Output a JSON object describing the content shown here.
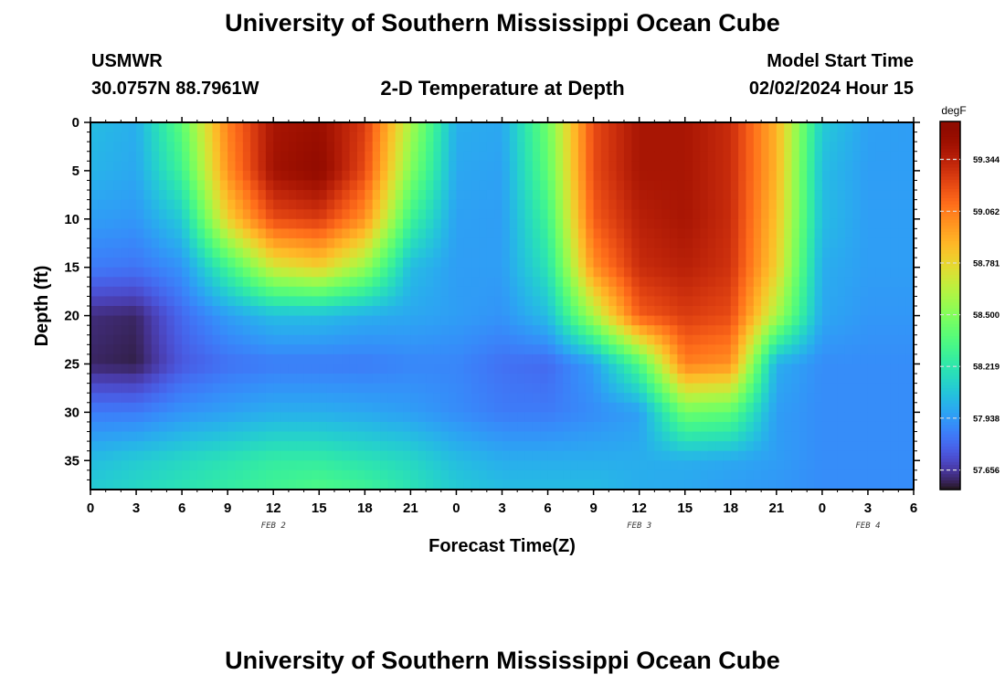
{
  "chart_data": {
    "type": "heatmap",
    "title": "University of Southern Mississippi Ocean Cube",
    "subtitle": "2-D Temperature at Depth",
    "station": "USMWR",
    "location": "30.0757N  88.7961W",
    "model_start_label": "Model Start Time",
    "model_start_value": "02/02/2024 Hour 15",
    "xlabel": "Forecast Time(Z)",
    "ylabel": "Depth (ft)",
    "x_unit": "forecast hours",
    "x_range": [
      0,
      54
    ],
    "x_tick_labels": [
      "0",
      "3",
      "6",
      "9",
      "12",
      "15",
      "18",
      "21",
      "0",
      "3",
      "6",
      "9",
      "12",
      "15",
      "18",
      "21",
      "0",
      "3",
      "6"
    ],
    "day_labels": [
      {
        "text": "FEB 2",
        "x": 12
      },
      {
        "text": "FEB 3",
        "x": 36
      },
      {
        "text": "FEB 4",
        "x": 51
      }
    ],
    "y_unit": "ft",
    "y_range": [
      0,
      38
    ],
    "y_inverted": true,
    "y_ticks": [
      0,
      5,
      10,
      15,
      20,
      25,
      30,
      35
    ],
    "colorbar": {
      "unit": "degF",
      "range": [
        57.55,
        59.55
      ],
      "ticks": [
        "59.344",
        "59.062",
        "58.781",
        "58.500",
        "58.219",
        "57.938",
        "57.656"
      ],
      "colormap": "turbo"
    },
    "values_note_depths_ft": [
      0,
      5,
      10,
      15,
      20,
      25,
      30,
      35,
      38
    ],
    "value_profiles": [
      {
        "x": 0,
        "values": [
          58.05,
          58.02,
          57.95,
          57.85,
          57.62,
          57.6,
          57.85,
          58.05,
          58.1
        ]
      },
      {
        "x": 3,
        "values": [
          58.0,
          57.98,
          57.93,
          57.83,
          57.6,
          57.58,
          57.85,
          58.1,
          58.15
        ]
      },
      {
        "x": 6,
        "values": [
          58.4,
          58.3,
          58.1,
          57.92,
          57.8,
          57.75,
          57.92,
          58.15,
          58.2
        ]
      },
      {
        "x": 9,
        "values": [
          59.05,
          59.0,
          58.8,
          58.3,
          57.95,
          57.82,
          57.96,
          58.2,
          58.25
        ]
      },
      {
        "x": 12,
        "values": [
          59.4,
          59.42,
          59.2,
          58.7,
          58.05,
          57.85,
          58.0,
          58.25,
          58.3
        ]
      },
      {
        "x": 15,
        "values": [
          59.45,
          59.5,
          59.25,
          58.8,
          58.05,
          57.85,
          58.0,
          58.25,
          58.35
        ]
      },
      {
        "x": 18,
        "values": [
          59.25,
          59.2,
          59.0,
          58.55,
          58.0,
          57.85,
          57.98,
          58.2,
          58.3
        ]
      },
      {
        "x": 21,
        "values": [
          58.6,
          58.5,
          58.3,
          58.05,
          57.98,
          57.88,
          57.95,
          58.15,
          58.2
        ]
      },
      {
        "x": 24,
        "values": [
          58.0,
          57.98,
          57.96,
          57.95,
          57.95,
          57.88,
          57.9,
          58.05,
          58.1
        ]
      },
      {
        "x": 27,
        "values": [
          57.98,
          57.96,
          57.95,
          57.95,
          57.92,
          57.82,
          57.85,
          58.0,
          58.05
        ]
      },
      {
        "x": 30,
        "values": [
          58.45,
          58.4,
          58.3,
          58.2,
          58.05,
          57.8,
          57.85,
          58.0,
          58.05
        ]
      },
      {
        "x": 33,
        "values": [
          59.2,
          59.2,
          59.15,
          59.0,
          58.6,
          57.95,
          57.9,
          58.0,
          58.05
        ]
      },
      {
        "x": 36,
        "values": [
          59.4,
          59.4,
          59.35,
          59.3,
          59.15,
          58.35,
          57.95,
          58.0,
          58.0
        ]
      },
      {
        "x": 39,
        "values": [
          59.4,
          59.4,
          59.4,
          59.35,
          59.25,
          59.05,
          58.45,
          58.0,
          57.98
        ]
      },
      {
        "x": 42,
        "values": [
          59.3,
          59.3,
          59.3,
          59.28,
          59.2,
          59.0,
          58.4,
          57.98,
          57.95
        ]
      },
      {
        "x": 45,
        "values": [
          58.9,
          58.9,
          58.85,
          58.8,
          58.6,
          58.0,
          57.95,
          57.95,
          57.93
        ]
      },
      {
        "x": 48,
        "values": [
          58.1,
          58.05,
          58.05,
          58.0,
          57.98,
          57.9,
          57.9,
          57.9,
          57.9
        ]
      },
      {
        "x": 51,
        "values": [
          57.96,
          57.95,
          57.95,
          57.95,
          57.93,
          57.9,
          57.9,
          57.9,
          57.9
        ]
      },
      {
        "x": 54,
        "values": [
          57.95,
          57.95,
          57.95,
          57.95,
          57.93,
          57.9,
          57.9,
          57.9,
          57.9
        ]
      }
    ]
  }
}
